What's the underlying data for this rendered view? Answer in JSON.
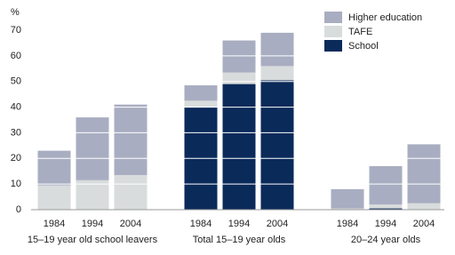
{
  "chart_data": {
    "type": "bar",
    "stacked": true,
    "y_label": "%",
    "categories": [
      "1984",
      "1994",
      "2004",
      "1984",
      "1994",
      "2004",
      "1984",
      "1994",
      "2004"
    ],
    "groups": [
      "15–19 year old school leavers",
      "Total 15–19 year olds",
      "20–24 year olds"
    ],
    "series": [
      {
        "name": "Higher education",
        "color": "#a9adc1",
        "values": [
          13.5,
          24.5,
          27.5,
          6,
          12.5,
          13,
          7.5,
          15,
          23
        ]
      },
      {
        "name": "TAFE",
        "color": "#d8dcdc",
        "values": [
          9.5,
          11.5,
          13.5,
          2.5,
          4.5,
          5.5,
          0.5,
          1.5,
          2.5
        ]
      },
      {
        "name": "School",
        "color": "#0a2a5a",
        "values": [
          0,
          0,
          0,
          40,
          49,
          50.5,
          0,
          0.5,
          0
        ]
      }
    ],
    "ylim": [
      0,
      70
    ],
    "yticks": [
      0,
      10,
      20,
      30,
      40,
      50,
      60,
      70
    ],
    "grid": true,
    "legend": "top-right"
  }
}
